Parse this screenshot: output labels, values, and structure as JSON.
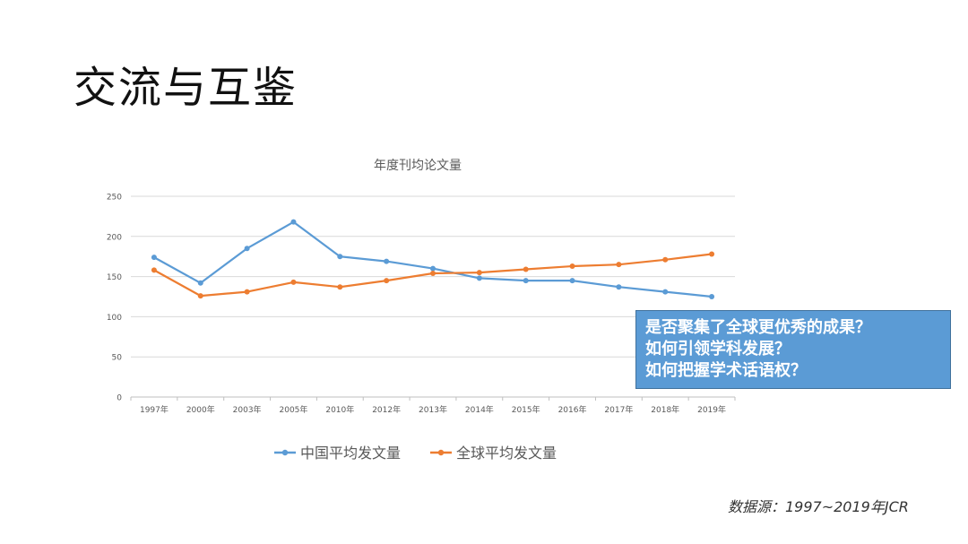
{
  "slide": {
    "title": "交流与互鉴",
    "source": "数据源：1997~2019年JCR"
  },
  "callout": {
    "lines": [
      "是否聚集了全球更优秀的成果？",
      "如何引领学科发展？",
      "如何把握学术话语权？"
    ],
    "color": "#5b9bd5"
  },
  "chart_data": {
    "type": "line",
    "title": "年度刊均论文量",
    "categories": [
      "1997年",
      "2000年",
      "2003年",
      "2005年",
      "2010年",
      "2012年",
      "2013年",
      "2014年",
      "2015年",
      "2016年",
      "2017年",
      "2018年",
      "2019年"
    ],
    "series": [
      {
        "name": "中国平均发文量",
        "color": "#5b9bd5",
        "values": [
          174,
          142,
          185,
          218,
          175,
          169,
          160,
          148,
          145,
          145,
          137,
          131,
          125
        ]
      },
      {
        "name": "全球平均发文量",
        "color": "#ed7d31",
        "values": [
          158,
          126,
          131,
          143,
          137,
          145,
          154,
          155,
          159,
          163,
          165,
          171,
          178
        ]
      }
    ],
    "ylim": [
      0,
      250
    ],
    "yticks": [
      0,
      50,
      100,
      150,
      200,
      250
    ],
    "grid": true,
    "legend": "bottom",
    "xlabel": "",
    "ylabel": ""
  }
}
